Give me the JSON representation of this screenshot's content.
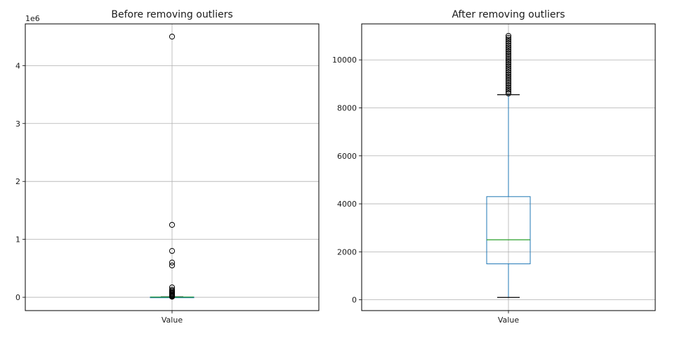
{
  "chart_data": [
    {
      "type": "box",
      "title": "Before removing outliers",
      "xlabel": "Value",
      "ylabel": "",
      "scale_note": "1e6",
      "categories": [
        "Value"
      ],
      "ylim": [
        -230000,
        4720000
      ],
      "yticks": [
        0,
        1000000,
        2000000,
        3000000,
        4000000
      ],
      "ytick_labels": [
        "0",
        "1",
        "2",
        "3",
        "4"
      ],
      "grid": true,
      "box": {
        "whisker_low": 0,
        "q1": 1500,
        "median": 2500,
        "q3": 4300,
        "whisker_high": 8500
      },
      "outliers": [
        4500000,
        1250000,
        800000,
        600000,
        550000,
        170000,
        130000,
        110000,
        90000,
        75000,
        60000,
        45000,
        35000,
        28000,
        22000,
        17000,
        13000,
        10000
      ],
      "colors": {
        "box": "#1f77b4",
        "median": "#2ca02c",
        "whisker": "#000000",
        "outlier": "#000000"
      }
    },
    {
      "type": "box",
      "title": "After removing outliers",
      "xlabel": "Value",
      "ylabel": "",
      "categories": [
        "Value"
      ],
      "ylim": [
        -450,
        11500
      ],
      "yticks": [
        0,
        2000,
        4000,
        6000,
        8000,
        10000
      ],
      "ytick_labels": [
        "0",
        "2000",
        "4000",
        "6000",
        "8000",
        "10000"
      ],
      "grid": true,
      "box": {
        "whisker_low": 100,
        "q1": 1500,
        "median": 2500,
        "q3": 4300,
        "whisker_high": 8550
      },
      "outliers": [
        8600,
        8680,
        8760,
        8840,
        8920,
        9000,
        9080,
        9160,
        9240,
        9320,
        9400,
        9480,
        9560,
        9640,
        9720,
        9800,
        9880,
        9960,
        10040,
        10120,
        10200,
        10280,
        10360,
        10440,
        10520,
        10600,
        10680,
        10760,
        10840,
        10920,
        11000
      ],
      "colors": {
        "box": "#1f77b4",
        "median": "#2ca02c",
        "whisker": "#000000",
        "outlier": "#000000"
      }
    }
  ]
}
